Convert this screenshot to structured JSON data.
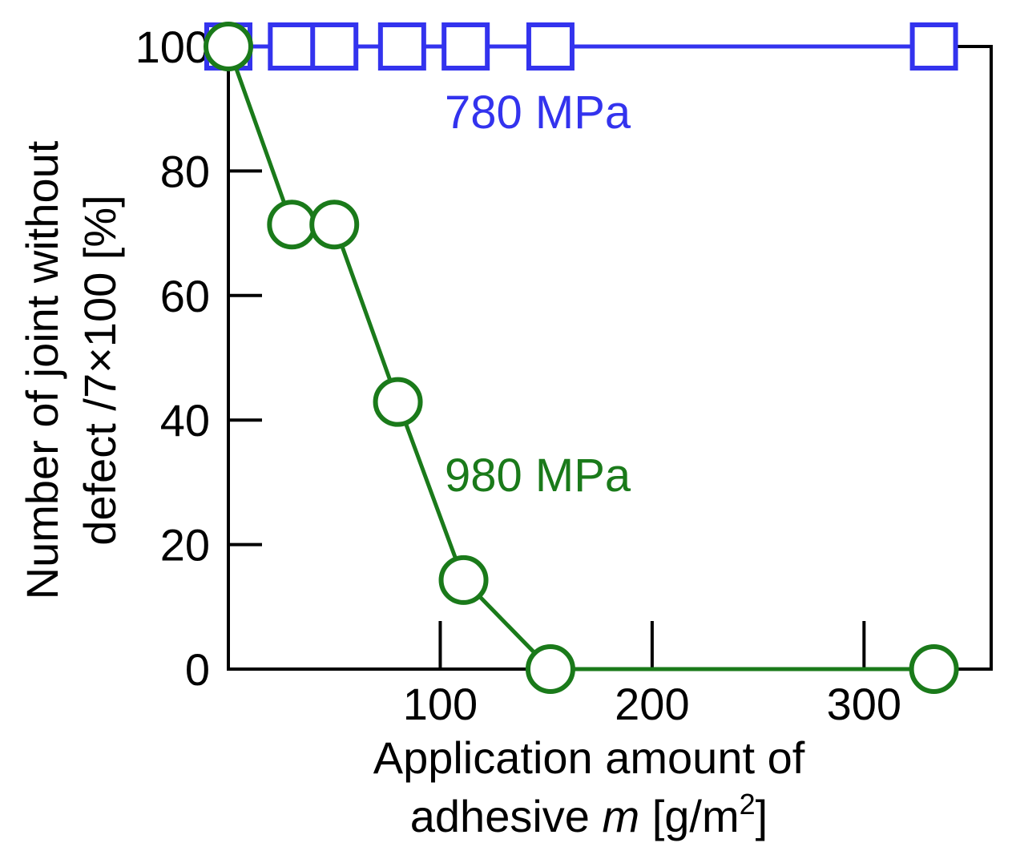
{
  "colors": {
    "series_780": "#3333ee",
    "series_980": "#1a7a1a",
    "axis": "#000000"
  },
  "chart_data": {
    "type": "line",
    "title": "",
    "xlabel_line1": "Application amount of",
    "xlabel_line2_prefix": "adhesive ",
    "xlabel_var": "m",
    "xlabel_unit_open": " [g/m",
    "xlabel_unit_sup": "2",
    "xlabel_unit_close": "]",
    "ylabel_line1": "Number of joint without",
    "ylabel_line2": "defect /7×100 [%]",
    "xlim": [
      0,
      360
    ],
    "ylim": [
      0,
      100
    ],
    "x_ticks": [
      100,
      200,
      300
    ],
    "y_ticks": [
      0,
      20,
      40,
      60,
      80,
      100
    ],
    "grid": false,
    "series": [
      {
        "name": "780 MPa",
        "marker": "square",
        "color": "#3333ee",
        "x": [
          0,
          30,
          50,
          82,
          112,
          152,
          333
        ],
        "y": [
          100,
          100,
          100,
          100,
          100,
          100,
          100
        ]
      },
      {
        "name": "980 MPa",
        "marker": "circle",
        "color": "#1a7a1a",
        "x": [
          0,
          30,
          50,
          80,
          111,
          152,
          333
        ],
        "y": [
          100,
          71.4,
          71.4,
          42.9,
          14.3,
          0,
          0
        ]
      }
    ]
  }
}
